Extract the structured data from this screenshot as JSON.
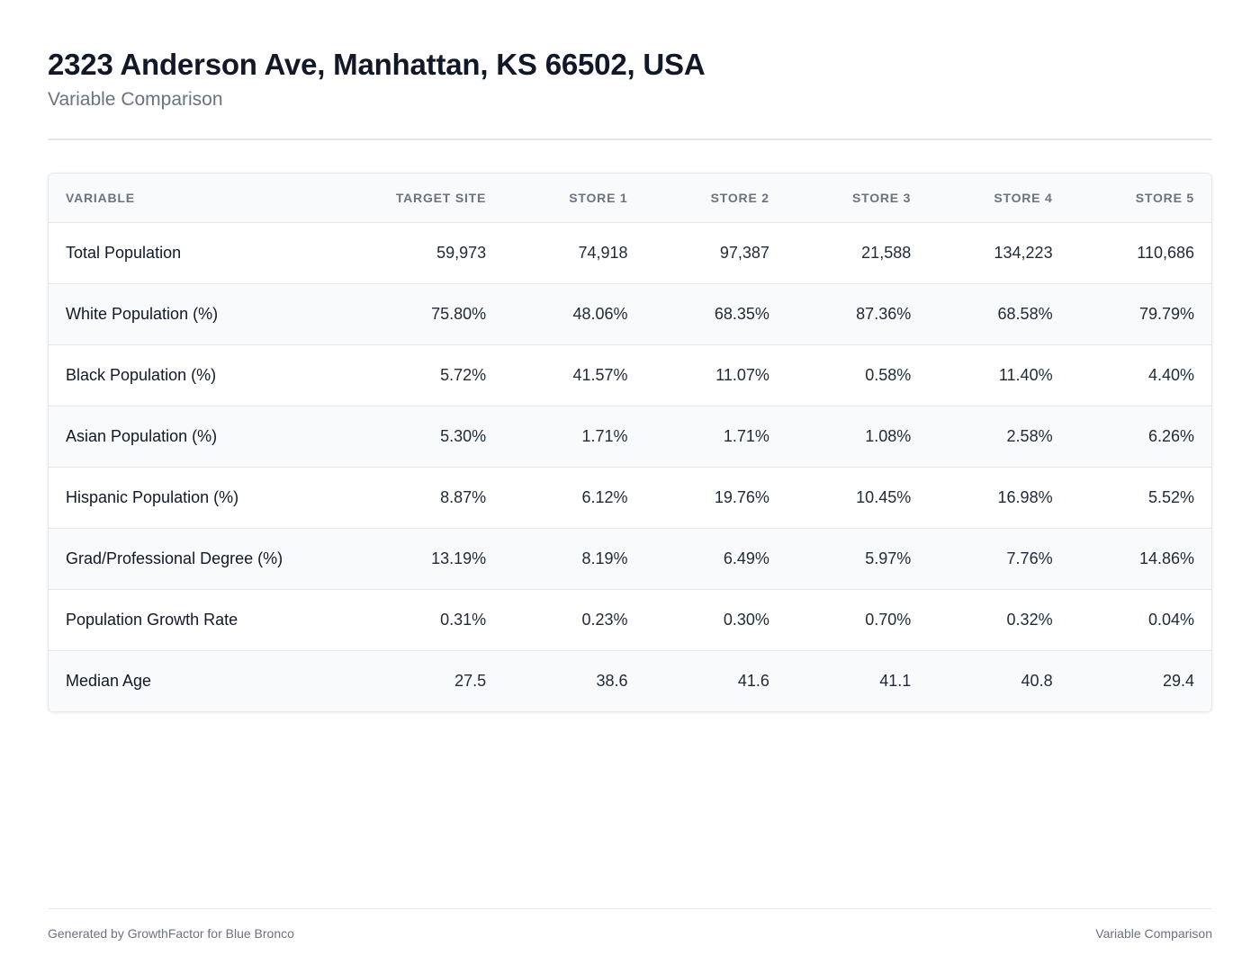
{
  "header": {
    "title": "2323 Anderson Ave, Manhattan, KS 66502, USA",
    "subtitle": "Variable Comparison"
  },
  "table": {
    "columns": [
      "VARIABLE",
      "TARGET SITE",
      "STORE 1",
      "STORE 2",
      "STORE 3",
      "STORE 4",
      "STORE 5"
    ],
    "rows": [
      {
        "variable": "Total Population",
        "values": [
          "59,973",
          "74,918",
          "97,387",
          "21,588",
          "134,223",
          "110,686"
        ]
      },
      {
        "variable": "White Population (%)",
        "values": [
          "75.80%",
          "48.06%",
          "68.35%",
          "87.36%",
          "68.58%",
          "79.79%"
        ]
      },
      {
        "variable": "Black Population (%)",
        "values": [
          "5.72%",
          "41.57%",
          "11.07%",
          "0.58%",
          "11.40%",
          "4.40%"
        ]
      },
      {
        "variable": "Asian Population (%)",
        "values": [
          "5.30%",
          "1.71%",
          "1.71%",
          "1.08%",
          "2.58%",
          "6.26%"
        ]
      },
      {
        "variable": "Hispanic Population (%)",
        "values": [
          "8.87%",
          "6.12%",
          "19.76%",
          "10.45%",
          "16.98%",
          "5.52%"
        ]
      },
      {
        "variable": "Grad/Professional Degree (%)",
        "values": [
          "13.19%",
          "8.19%",
          "6.49%",
          "5.97%",
          "7.76%",
          "14.86%"
        ]
      },
      {
        "variable": "Population Growth Rate",
        "values": [
          "0.31%",
          "0.23%",
          "0.30%",
          "0.70%",
          "0.32%",
          "0.04%"
        ]
      },
      {
        "variable": "Median Age",
        "values": [
          "27.5",
          "38.6",
          "41.6",
          "41.1",
          "40.8",
          "29.4"
        ]
      }
    ]
  },
  "footer": {
    "left": "Generated by GrowthFactor for Blue Bronco",
    "right": "Variable Comparison"
  },
  "colors": {
    "title": "#111827",
    "muted": "#6b7280",
    "border": "#e5e7eb",
    "alt_row": "#f8fafc",
    "header_row": "#f9fafb"
  }
}
